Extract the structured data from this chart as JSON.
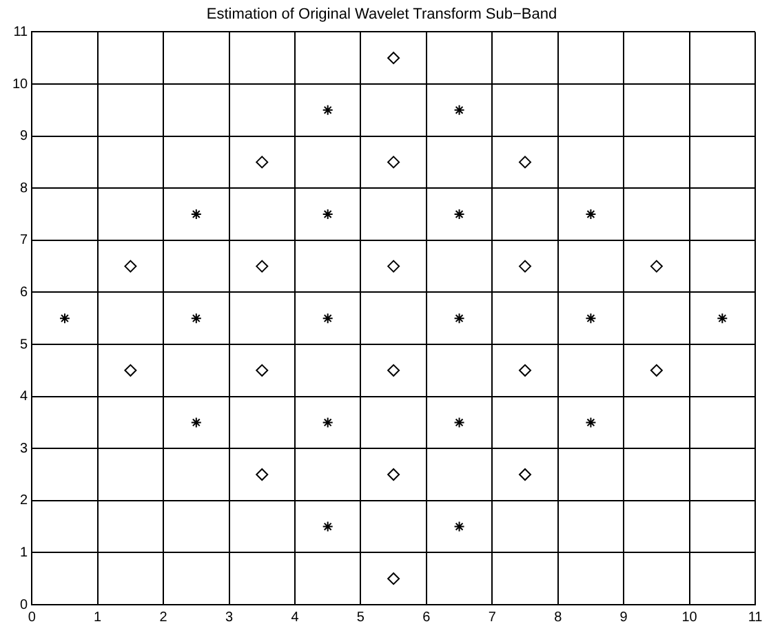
{
  "chart_data": {
    "type": "scatter",
    "title": "Estimation of Original Wavelet Transform Sub−Band",
    "xlim": [
      0,
      11
    ],
    "ylim": [
      0,
      11
    ],
    "xticks": [
      0,
      1,
      2,
      3,
      4,
      5,
      6,
      7,
      8,
      9,
      10,
      11
    ],
    "yticks": [
      0,
      1,
      2,
      3,
      4,
      5,
      6,
      7,
      8,
      9,
      10,
      11
    ],
    "grid": true,
    "legend": false,
    "series": [
      {
        "color": "#000000",
        "marker": "cross",
        "x": [
          0.5,
          2.5,
          2.5,
          2.5,
          4.5,
          4.5,
          4.5,
          4.5,
          4.5,
          6.5,
          6.5,
          6.5,
          6.5,
          6.5,
          8.5,
          8.5,
          8.5,
          10.5
        ],
        "values": [
          5.5,
          7.5,
          5.5,
          3.5,
          9.5,
          7.5,
          5.5,
          3.5,
          1.5,
          9.5,
          7.5,
          5.5,
          3.5,
          1.5,
          7.5,
          5.5,
          3.5,
          5.5
        ]
      },
      {
        "color": "#000000",
        "marker": "diamond",
        "x": [
          1.5,
          1.5,
          3.5,
          3.5,
          3.5,
          3.5,
          5.5,
          5.5,
          5.5,
          5.5,
          5.5,
          5.5,
          7.5,
          7.5,
          7.5,
          7.5,
          9.5,
          9.5
        ],
        "values": [
          6.5,
          4.5,
          8.5,
          6.5,
          4.5,
          2.5,
          10.5,
          8.5,
          6.5,
          4.5,
          2.5,
          0.5,
          8.5,
          6.5,
          4.5,
          2.5,
          6.5,
          4.5
        ]
      }
    ]
  }
}
